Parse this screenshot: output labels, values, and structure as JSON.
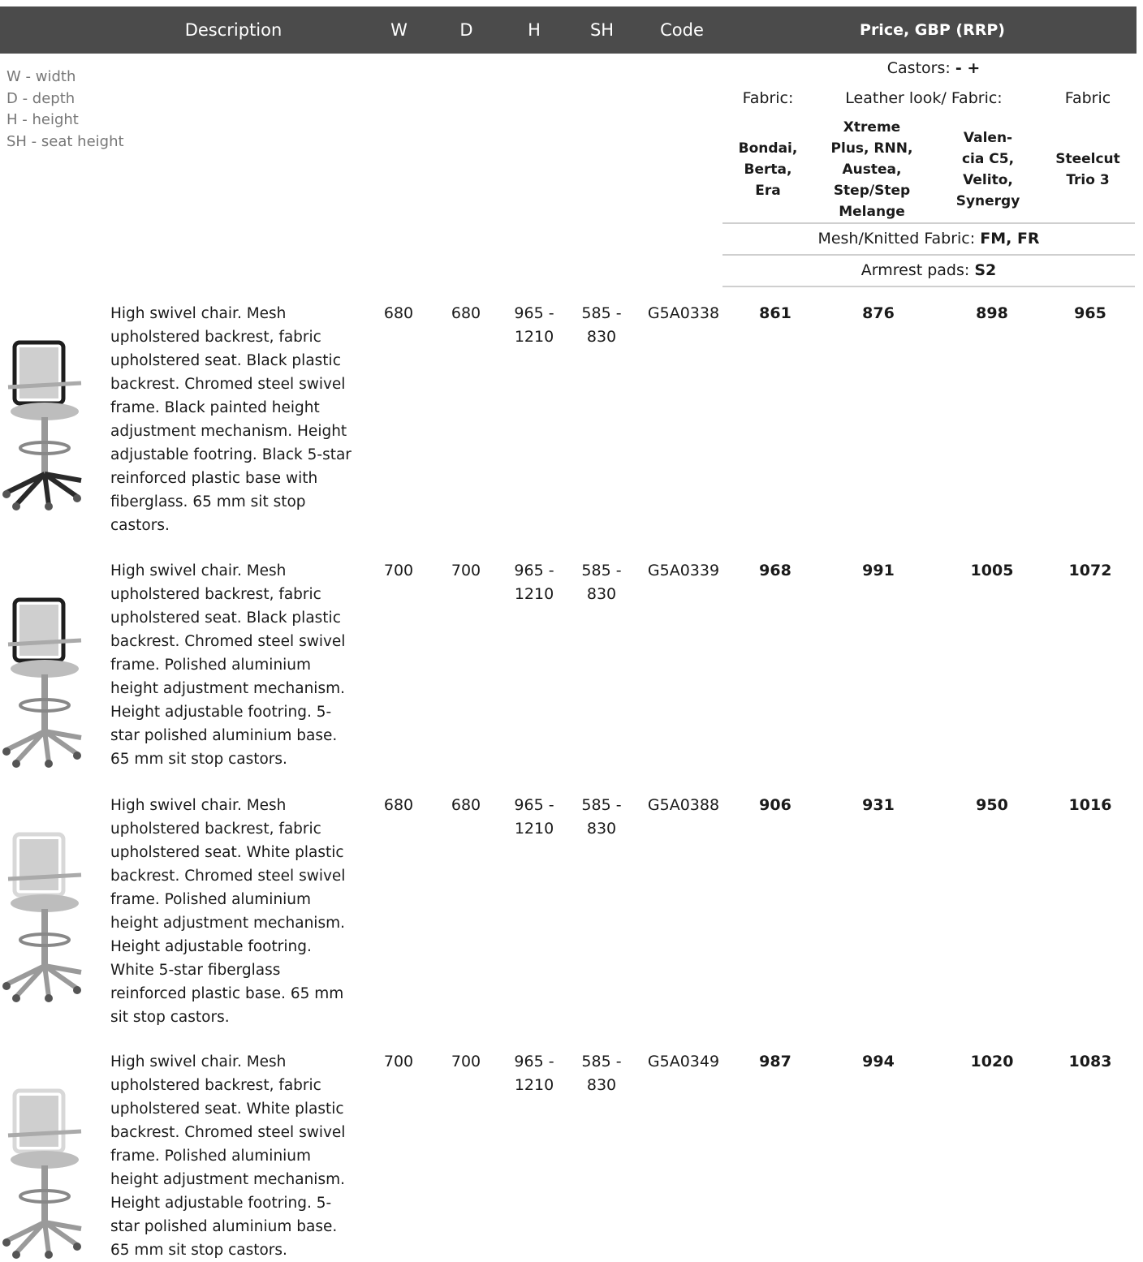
{
  "header": {
    "columns": [
      "Description",
      "W",
      "D",
      "H",
      "SH",
      "Code",
      "Price, GBP (RRP)"
    ]
  },
  "legend": [
    "W - width",
    "D - depth",
    "H - height",
    "SH - seat height"
  ],
  "price_header": {
    "castors_label": "Castors:",
    "castors_value": "- +",
    "fabric_labels": [
      "Fabric:",
      "Leather look/ Fabric:",
      "Fabric"
    ],
    "fabric_groups": [
      [
        "Bondai,",
        "Berta,",
        "Era"
      ],
      [
        "Xtreme",
        "Plus, RNN,",
        "Austea,",
        "Step/Step",
        "Melange"
      ],
      [
        "Valen-",
        "cia C5,",
        "Velito,",
        "Synergy"
      ],
      [
        "Steelcut",
        "Trio 3"
      ]
    ],
    "mesh_label": "Mesh/Knitted Fabric:",
    "mesh_value": "FM, FR",
    "armrest_label": "Armrest pads:",
    "armrest_value": "S2"
  },
  "rows": [
    {
      "description": "High swivel chair. Mesh upholstered backrest, fabric upholstered seat. Black plastic backrest. Chromed steel swivel frame. Black painted height adjustment mechanism. Height adjustable footring. Black 5-star reinforced plastic base with fiberglass.  65 mm sit stop castors.",
      "w": 680,
      "d": 680,
      "h": [
        "965 -",
        "1210"
      ],
      "sh": [
        "585 -",
        "830"
      ],
      "code": "G5A0338",
      "prices": [
        861,
        876,
        898,
        965
      ]
    },
    {
      "description": "High swivel chair. Mesh upholstered backrest, fabric upholstered seat. Black plastic backrest. Chromed steel swivel frame. Polished aluminium height adjustment mechanism. Height adjustable footring. 5-star polished aluminium base. 65 mm sit stop castors.",
      "w": 700,
      "d": 700,
      "h": [
        "965 -",
        "1210"
      ],
      "sh": [
        "585 -",
        "830"
      ],
      "code": "G5A0339",
      "prices": [
        968,
        991,
        1005,
        1072
      ]
    },
    {
      "description": "High swivel chair. Mesh upholstered backrest, fabric upholstered seat. White plastic backrest. Chromed steel swivel frame. Polished aluminium height adjustment mechanism. Height adjustable footring. White 5-star fiberglass reinforced plastic base. 65 mm sit stop castors.",
      "w": 680,
      "d": 680,
      "h": [
        "965 -",
        "1210"
      ],
      "sh": [
        "585 -",
        "830"
      ],
      "code": "G5A0388",
      "prices": [
        906,
        931,
        950,
        1016
      ]
    },
    {
      "description": "High swivel chair. Mesh upholstered backrest, fabric upholstered seat. White plastic backrest. Chromed steel swivel frame. Polished aluminium height adjustment mechanism. Height adjustable footring. 5-star polished aluminium base. 65 mm sit stop castors.",
      "w": 700,
      "d": 700,
      "h": [
        "965 -",
        "1210"
      ],
      "sh": [
        "585 -",
        "830"
      ],
      "code": "G5A0349",
      "prices": [
        987,
        994,
        1020,
        1083
      ]
    }
  ]
}
